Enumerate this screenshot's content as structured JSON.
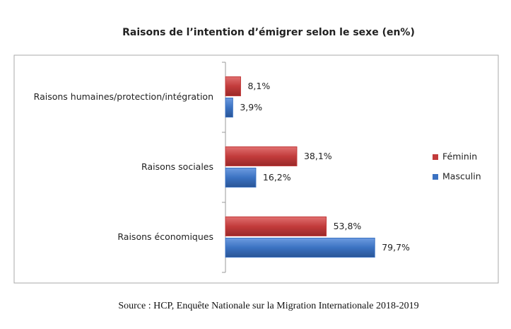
{
  "chart_data": {
    "type": "bar",
    "orientation": "horizontal",
    "title": "Raisons de l’intention d’émigrer selon le sexe (en%)",
    "categories": [
      "Raisons humaines/protection/intégration",
      "Raisons sociales",
      "Raisons économiques"
    ],
    "series": [
      {
        "name": "Féminin",
        "color": "#c23b3b",
        "values": [
          8.1,
          38.1,
          53.8
        ],
        "value_labels": [
          "8,1%",
          "38,1%",
          "53,8%"
        ]
      },
      {
        "name": "Masculin",
        "color": "#3b72c2",
        "values": [
          3.9,
          16.2,
          79.7
        ],
        "value_labels": [
          "3,9%",
          "16,2%",
          "79,7%"
        ]
      }
    ],
    "legend": "right",
    "source": "Source : HCP, Enquête Nationale sur la Migration Internationale 2018-2019"
  }
}
